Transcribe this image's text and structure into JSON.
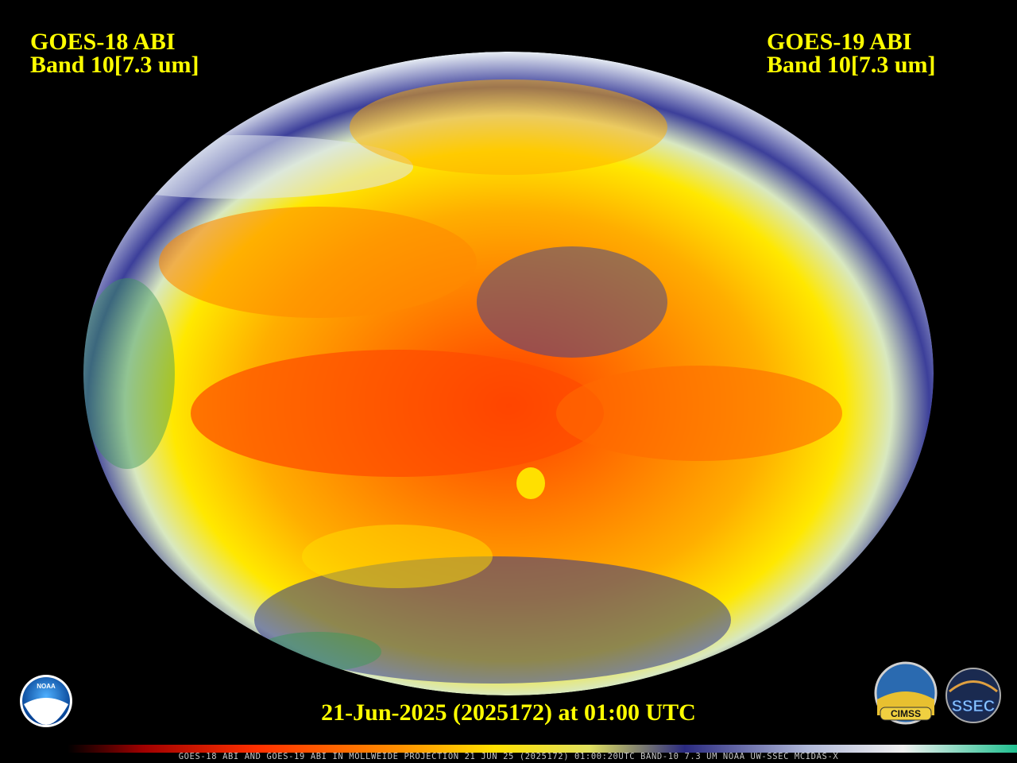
{
  "left_header": {
    "title": "GOES-18 ABI",
    "band": "Band 10[7.3 um]"
  },
  "right_header": {
    "title": "GOES-19 ABI",
    "band": "Band 10[7.3 um]"
  },
  "timestamp": "21-Jun-2025 (2025172) at 01:00 UTC",
  "caption": "GOES-18 ABI AND GOES-19 ABI IN MOLLWEIDE PROJECTION 21 JUN 25 (2025172) 01:00:20UTC BAND-10 7.3 UM NOAA UW-SSEC MCIDAS-X",
  "logos": [
    "NOAA",
    "CIMSS",
    "SSEC"
  ]
}
